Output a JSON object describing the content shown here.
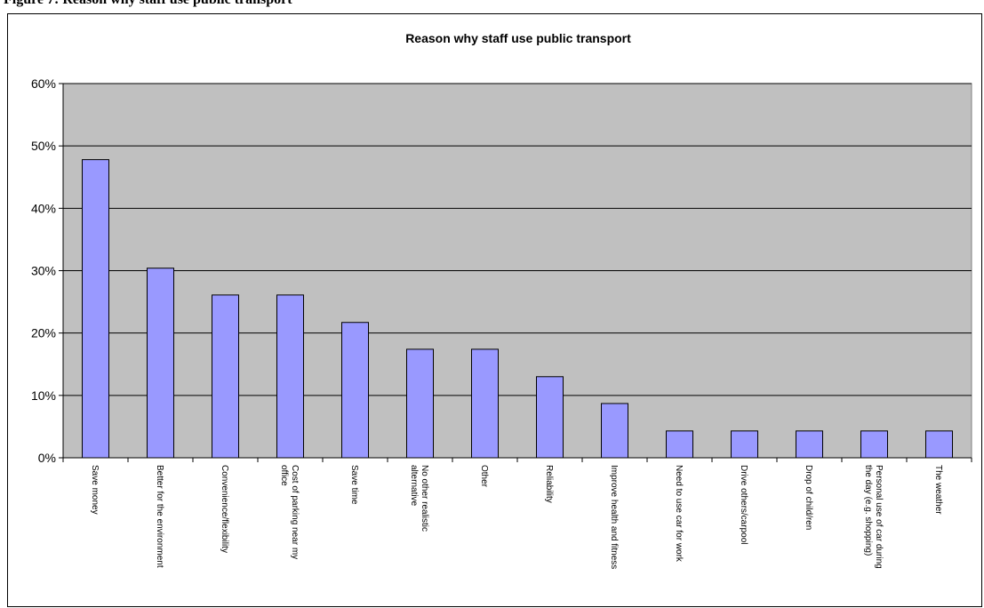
{
  "caption": "Figure 7: Reason why staff use public transport",
  "chart_data": {
    "type": "bar",
    "title": "Reason why staff use public transport",
    "xlabel": "",
    "ylabel": "",
    "ylim": [
      0,
      0.6
    ],
    "yticks": [
      "0%",
      "10%",
      "20%",
      "30%",
      "40%",
      "50%",
      "60%"
    ],
    "grid": true,
    "legend": "none",
    "colors": {
      "bar": "#9999ff",
      "bar_edge": "#000000",
      "plot_bg": "#c0c0c0",
      "grid": "#000000"
    },
    "categories": [
      [
        "Save money"
      ],
      [
        "Better for the environment"
      ],
      [
        "Convenience/flexibility"
      ],
      [
        "Cost of parking near my",
        "office"
      ],
      [
        "Save time"
      ],
      [
        "No other realistic",
        "alternative"
      ],
      [
        "Other"
      ],
      [
        "Reliability"
      ],
      [
        "Improve health and fitness"
      ],
      [
        "Need to use car for work"
      ],
      [
        "Drive others/carpool"
      ],
      [
        "Drop of child/ren"
      ],
      [
        "Personal use of car during",
        "the day (e.g. shopping)"
      ],
      [
        "The weather"
      ]
    ],
    "values": [
      0.478,
      0.304,
      0.261,
      0.261,
      0.217,
      0.174,
      0.174,
      0.13,
      0.087,
      0.043,
      0.043,
      0.043,
      0.043,
      0.043
    ]
  }
}
